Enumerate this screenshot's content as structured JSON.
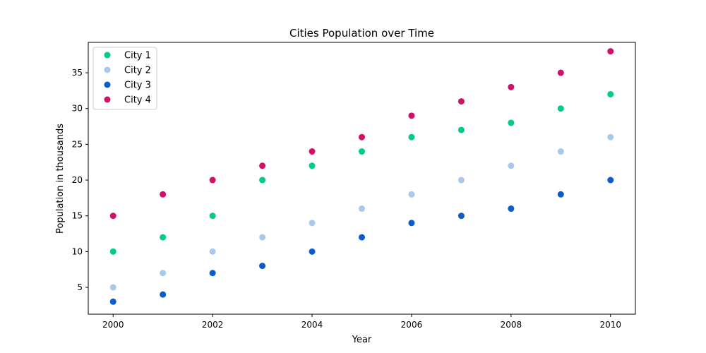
{
  "chart_data": {
    "type": "scatter",
    "title": "Cities Population over Time",
    "xlabel": "Year",
    "ylabel": "Population in thousands",
    "xlim": [
      1999.5,
      2010.5
    ],
    "ylim": [
      1.25,
      39.25
    ],
    "xticks": [
      2000,
      2002,
      2004,
      2006,
      2008,
      2010
    ],
    "yticks": [
      5,
      10,
      15,
      20,
      25,
      30,
      35
    ],
    "grid": false,
    "legend_position": "top-left",
    "x": [
      2000,
      2001,
      2002,
      2003,
      2004,
      2005,
      2006,
      2007,
      2008,
      2009,
      2010
    ],
    "series": [
      {
        "name": "City 1",
        "color": "#00cc88",
        "values": [
          10,
          12,
          15,
          20,
          22,
          24,
          26,
          27,
          28,
          30,
          32
        ]
      },
      {
        "name": "City 2",
        "color": "#a9c9ec",
        "values": [
          5,
          7,
          10,
          12,
          14,
          16,
          18,
          20,
          22,
          24,
          26
        ]
      },
      {
        "name": "City 3",
        "color": "#0b5ccc",
        "values": [
          3,
          4,
          7,
          8,
          10,
          12,
          14,
          15,
          16,
          18,
          20
        ]
      },
      {
        "name": "City 4",
        "color": "#d40f67",
        "values": [
          15,
          18,
          20,
          22,
          24,
          26,
          29,
          31,
          33,
          35,
          38
        ]
      }
    ]
  }
}
